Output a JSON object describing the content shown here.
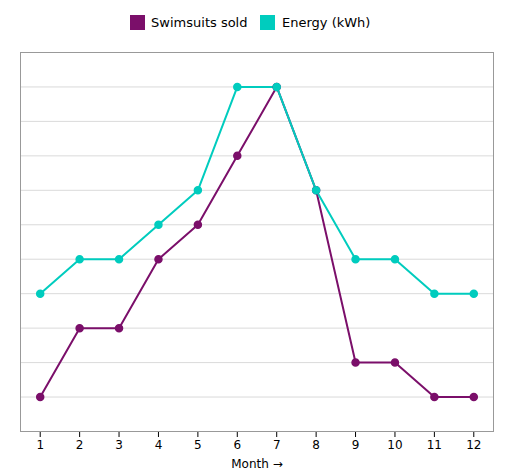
{
  "chart_data": {
    "type": "line",
    "x": [
      1,
      2,
      3,
      4,
      5,
      6,
      7,
      8,
      9,
      10,
      11,
      12
    ],
    "xlabel": "Month",
    "series": [
      {
        "name": "Swimsuits sold",
        "color": "#7B0F6A",
        "marker": "circle",
        "values": [
          1,
          3,
          3,
          5,
          6,
          8,
          10,
          7,
          2,
          2,
          1,
          1
        ]
      },
      {
        "name": "Energy (kWh)",
        "color": "#00CCBE",
        "marker": "circle",
        "values": [
          4,
          5,
          5,
          6,
          7,
          10,
          10,
          7,
          5,
          5,
          4,
          4
        ]
      }
    ],
    "xlim": [
      0.5,
      12.5
    ],
    "xticks": [
      1,
      2,
      3,
      4,
      5,
      6,
      7,
      8,
      9,
      10,
      11,
      12
    ],
    "ylim": [
      0,
      11
    ],
    "yticks": [
      0,
      1,
      2,
      3,
      4,
      5,
      6,
      7,
      8,
      9,
      10,
      11
    ],
    "grid": true,
    "legend": "top",
    "tick_labels": "x"
  }
}
